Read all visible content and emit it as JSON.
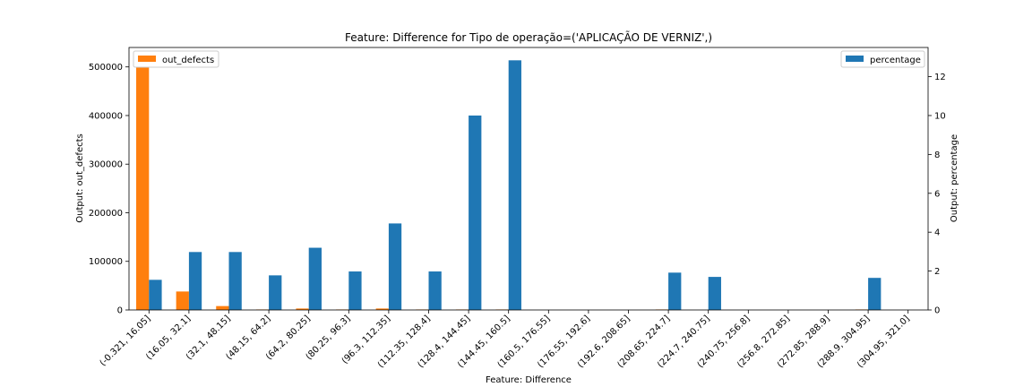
{
  "chart_data": {
    "type": "bar",
    "title": "Feature: Difference for Tipo de operação=('APLICAÇÃO DE VERNIZ',)",
    "xlabel": "Feature: Difference",
    "ylabel_left": "Output: out_defects",
    "ylabel_right": "Output: percentage",
    "categories": [
      "(-0.321, 16.05]",
      "(16.05, 32.1]",
      "(32.1, 48.15]",
      "(48.15, 64.2]",
      "(64.2, 80.25]",
      "(80.25, 96.3]",
      "(96.3, 112.35]",
      "(112.35, 128.4]",
      "(128.4, 144.45]",
      "(144.45, 160.5]",
      "(160.5, 176.55]",
      "(176.55, 192.6]",
      "(192.6, 208.65]",
      "(208.65, 224.7]",
      "(224.7, 240.75]",
      "(240.75, 256.8]",
      "(256.8, 272.85]",
      "(272.85, 288.9]",
      "(288.9, 304.95]",
      "(304.95, 321.0]"
    ],
    "series": [
      {
        "name": "out_defects",
        "axis": "left",
        "color": "#ff7f0e",
        "values": [
          513000,
          38000,
          8000,
          1000,
          3000,
          1000,
          3000,
          1000,
          1000,
          1000,
          0,
          0,
          0,
          1000,
          0,
          0,
          0,
          0,
          1000,
          0
        ]
      },
      {
        "name": "percentage",
        "axis": "right",
        "color": "#1f77b4",
        "values": [
          1.55,
          2.98,
          2.98,
          1.78,
          3.2,
          1.98,
          4.45,
          1.98,
          10.0,
          12.84,
          0,
          0,
          0,
          1.92,
          1.7,
          0,
          0,
          0,
          1.65,
          0
        ]
      }
    ],
    "ylim_left": [
      0,
      540000
    ],
    "yticks_left": [
      "0",
      "100000",
      "200000",
      "300000",
      "400000",
      "500000"
    ],
    "ylim_right": [
      0,
      13.5
    ],
    "yticks_right": [
      "0",
      "2",
      "4",
      "6",
      "8",
      "10",
      "12"
    ],
    "legend_left": "top-left",
    "legend_right": "top-right",
    "grid": false
  }
}
